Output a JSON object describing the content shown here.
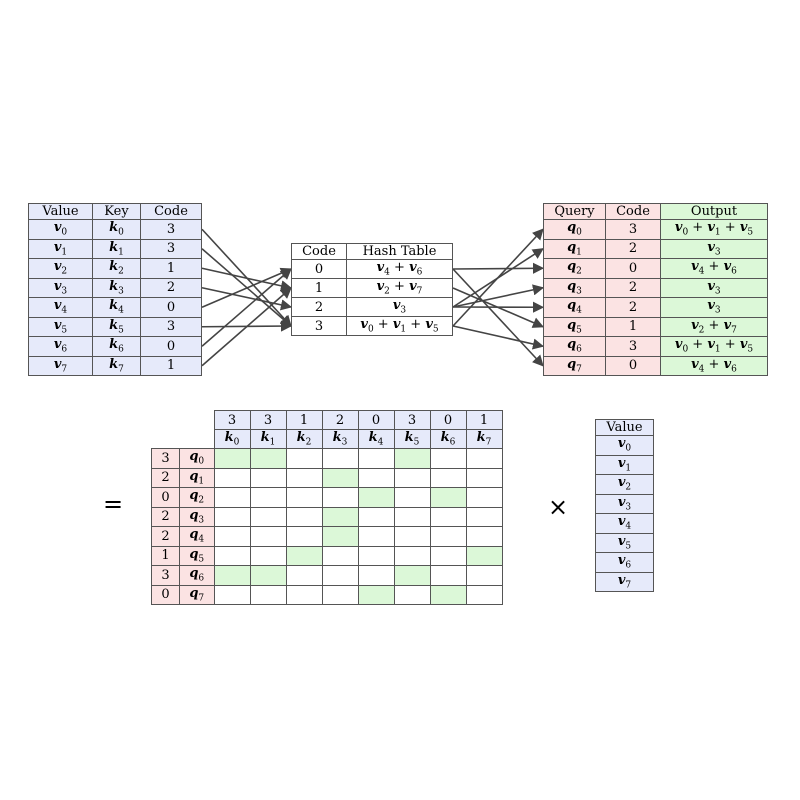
{
  "left_table": {
    "headers": [
      "Value",
      "Key",
      "Code"
    ],
    "rows": [
      {
        "value": "v",
        "vi": "0",
        "key": "k",
        "ki": "0",
        "code": "3"
      },
      {
        "value": "v",
        "vi": "1",
        "key": "k",
        "ki": "1",
        "code": "3"
      },
      {
        "value": "v",
        "vi": "2",
        "key": "k",
        "ki": "2",
        "code": "1"
      },
      {
        "value": "v",
        "vi": "3",
        "key": "k",
        "ki": "3",
        "code": "2"
      },
      {
        "value": "v",
        "vi": "4",
        "key": "k",
        "ki": "4",
        "code": "0"
      },
      {
        "value": "v",
        "vi": "5",
        "key": "k",
        "ki": "5",
        "code": "3"
      },
      {
        "value": "v",
        "vi": "6",
        "key": "k",
        "ki": "6",
        "code": "0"
      },
      {
        "value": "v",
        "vi": "7",
        "key": "k",
        "ki": "7",
        "code": "1"
      }
    ]
  },
  "hash_table": {
    "headers": [
      "Code",
      "Hash Table"
    ],
    "rows": [
      {
        "code": "0",
        "entry": [
          [
            "v",
            "4"
          ],
          [
            "v",
            "6"
          ]
        ]
      },
      {
        "code": "1",
        "entry": [
          [
            "v",
            "2"
          ],
          [
            "v",
            "7"
          ]
        ]
      },
      {
        "code": "2",
        "entry": [
          [
            "v",
            "3"
          ]
        ]
      },
      {
        "code": "3",
        "entry": [
          [
            "v",
            "0"
          ],
          [
            "v",
            "1"
          ],
          [
            "v",
            "5"
          ]
        ]
      }
    ]
  },
  "right_table": {
    "headers": [
      "Query",
      "Code",
      "Output"
    ],
    "rows": [
      {
        "query": "q",
        "qi": "0",
        "code": "3",
        "output": [
          [
            "v",
            "0"
          ],
          [
            "v",
            "1"
          ],
          [
            "v",
            "5"
          ]
        ]
      },
      {
        "query": "q",
        "qi": "1",
        "code": "2",
        "output": [
          [
            "v",
            "3"
          ]
        ]
      },
      {
        "query": "q",
        "qi": "2",
        "code": "0",
        "output": [
          [
            "v",
            "4"
          ],
          [
            "v",
            "6"
          ]
        ]
      },
      {
        "query": "q",
        "qi": "3",
        "code": "2",
        "output": [
          [
            "v",
            "3"
          ]
        ]
      },
      {
        "query": "q",
        "qi": "4",
        "code": "2",
        "output": [
          [
            "v",
            "3"
          ]
        ]
      },
      {
        "query": "q",
        "qi": "5",
        "code": "1",
        "output": [
          [
            "v",
            "2"
          ],
          [
            "v",
            "7"
          ]
        ]
      },
      {
        "query": "q",
        "qi": "6",
        "code": "3",
        "output": [
          [
            "v",
            "0"
          ],
          [
            "v",
            "1"
          ],
          [
            "v",
            "5"
          ]
        ]
      },
      {
        "query": "q",
        "qi": "7",
        "code": "0",
        "output": [
          [
            "v",
            "4"
          ],
          [
            "v",
            "6"
          ]
        ]
      }
    ]
  },
  "matrix": {
    "key_codes": [
      "3",
      "3",
      "1",
      "2",
      "0",
      "3",
      "0",
      "1"
    ],
    "key_symbol": "k",
    "query_codes": [
      "3",
      "2",
      "0",
      "2",
      "2",
      "1",
      "3",
      "0"
    ],
    "query_symbol": "q"
  },
  "value_column": {
    "header": "Value",
    "symbol": "v",
    "indices": [
      "0",
      "1",
      "2",
      "3",
      "4",
      "5",
      "6",
      "7"
    ]
  },
  "operators": {
    "equals": "=",
    "times": "×",
    "plus": "+"
  },
  "colors": {
    "blue": "#e6eafa",
    "pink": "#fbe3e3",
    "green": "#dcf8d8",
    "arrow": "#444444"
  }
}
